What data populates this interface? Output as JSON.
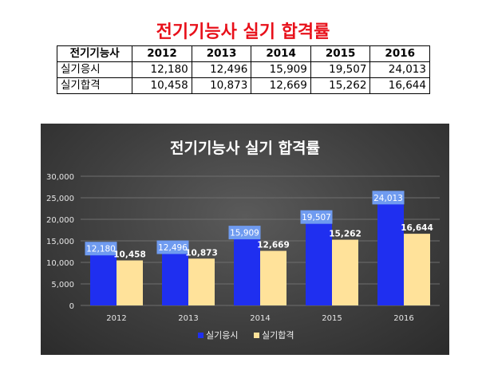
{
  "header": {
    "title": "전기기능사 실기 합격률"
  },
  "table": {
    "columns": [
      "전기기능사",
      "2012",
      "2013",
      "2014",
      "2015",
      "2016"
    ],
    "rows": [
      {
        "label": "실기응시",
        "cells": [
          "12,180",
          "12,496",
          "15,909",
          "19,507",
          "24,013"
        ]
      },
      {
        "label": "실기합격",
        "cells": [
          "10,458",
          "10,873",
          "12,669",
          "15,262",
          "16,644"
        ]
      }
    ]
  },
  "chart_data": {
    "type": "bar",
    "title": "전기기능사 실기 합격률",
    "categories": [
      "2012",
      "2013",
      "2014",
      "2015",
      "2016"
    ],
    "series": [
      {
        "name": "실기응시",
        "values": [
          12180,
          12496,
          15909,
          19507,
          24013
        ],
        "labels": [
          "12,180",
          "12,496",
          "15,909",
          "19,507",
          "24,013"
        ],
        "color": "#1f2ff0"
      },
      {
        "name": "실기합격",
        "values": [
          10458,
          10873,
          12669,
          15262,
          16644
        ],
        "labels": [
          "10,458",
          "10,873",
          "12,669",
          "15,262",
          "16,644"
        ],
        "color": "#ffe29a"
      }
    ],
    "ylim": [
      0,
      30000
    ],
    "yticks": [
      "0",
      "5,000",
      "10,000",
      "15,000",
      "20,000",
      "25,000",
      "30,000"
    ],
    "grid": true,
    "legend": "bottom"
  }
}
